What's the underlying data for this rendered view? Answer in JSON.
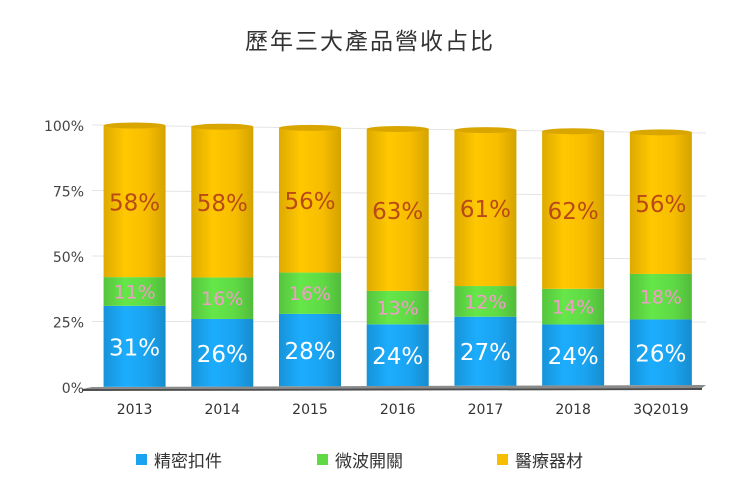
{
  "chart_data": {
    "type": "bar",
    "stacked": true,
    "percent": true,
    "title": "歷年三大產品營收占比",
    "categories": [
      "2013",
      "2014",
      "2015",
      "2016",
      "2017",
      "2018",
      "3Q2019"
    ],
    "yticks": [
      "0%",
      "25%",
      "50%",
      "75%",
      "100%"
    ],
    "ylim": [
      0,
      100
    ],
    "series": [
      {
        "name": "精密扣件",
        "color": "#1aa3f0",
        "label_color": "#ffffff",
        "values": [
          31,
          26,
          28,
          24,
          27,
          24,
          26
        ]
      },
      {
        "name": "微波開關",
        "color": "#5fda45",
        "label_color": "#f29ac8",
        "values": [
          11,
          16,
          16,
          13,
          12,
          14,
          18
        ]
      },
      {
        "name": "醫療器材",
        "color": "#f7bd00",
        "label_color": "#b94a18",
        "values": [
          58,
          58,
          56,
          63,
          61,
          62,
          56
        ]
      }
    ],
    "data_labels": [
      [
        "31%",
        "26%",
        "28%",
        "24%",
        "27%",
        "24%",
        "26%"
      ],
      [
        "11%",
        "16%",
        "16%",
        "13%",
        "12%",
        "14%",
        "18%"
      ],
      [
        "58%",
        "58%",
        "56%",
        "63%",
        "61%",
        "62%",
        "56%"
      ]
    ],
    "legend_position": "bottom",
    "grid": true
  }
}
